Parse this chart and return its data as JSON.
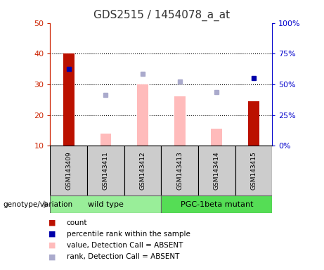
{
  "title": "GDS2515 / 1454078_a_at",
  "samples": [
    "GSM143409",
    "GSM143411",
    "GSM143412",
    "GSM143413",
    "GSM143414",
    "GSM143415"
  ],
  "ylim_left": [
    10,
    50
  ],
  "ylim_right": [
    0,
    100
  ],
  "yticks_left": [
    10,
    20,
    30,
    40,
    50
  ],
  "yticks_right": [
    0,
    25,
    50,
    75,
    100
  ],
  "red_bars": {
    "GSM143409": 40.0,
    "GSM143415": 24.5
  },
  "pink_bars": {
    "GSM143411": 14.0,
    "GSM143412": 30.0,
    "GSM143413": 26.0,
    "GSM143414": 15.5
  },
  "blue_squares": {
    "GSM143409": 35.0,
    "GSM143415": 32.0
  },
  "light_blue_squares": {
    "GSM143411": 26.5,
    "GSM143412": 33.5,
    "GSM143413": 31.0,
    "GSM143414": 27.5
  },
  "wild_type_color": "#99EE99",
  "mutant_color": "#55DD55",
  "group_box_color": "#cccccc",
  "red_bar_color": "#bb1100",
  "pink_bar_color": "#ffbbbb",
  "blue_square_color": "#0000aa",
  "light_blue_square_color": "#aaaacc",
  "title_color": "#333333",
  "left_axis_color": "#cc2200",
  "right_axis_color": "#0000cc",
  "grid_yticks": [
    20,
    30,
    40
  ]
}
